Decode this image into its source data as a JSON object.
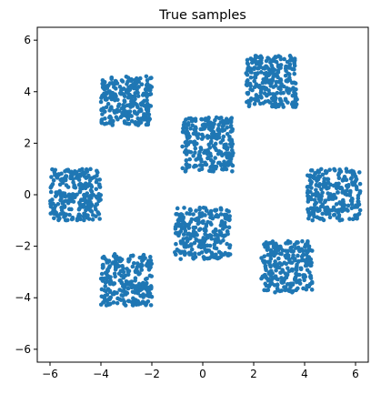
{
  "chart_data": {
    "type": "scatter",
    "title": "True samples",
    "xlabel": "",
    "ylabel": "",
    "xlim": [
      -6.5,
      6.5
    ],
    "ylim": [
      -6.5,
      6.5
    ],
    "xticks": [
      -6,
      -4,
      -2,
      0,
      2,
      4,
      6
    ],
    "yticks": [
      -6,
      -4,
      -2,
      0,
      2,
      4,
      6
    ],
    "xtick_labels": [
      "−6",
      "−4",
      "−2",
      "0",
      "2",
      "4",
      "6"
    ],
    "ytick_labels": [
      "−6",
      "−4",
      "−2",
      "0",
      "2",
      "4",
      "6"
    ],
    "grid": false,
    "legend": "none",
    "series": [
      {
        "color": "#1f77b4",
        "clusters": [
          {
            "x_range": [
              -6.0,
              -4.0
            ],
            "y_range": [
              -1.0,
              1.0
            ],
            "count": 260
          },
          {
            "x_range": [
              -4.0,
              -2.0
            ],
            "y_range": [
              2.7,
              4.6
            ],
            "count": 260
          },
          {
            "x_range": [
              -4.0,
              -2.0
            ],
            "y_range": [
              -4.3,
              -2.3
            ],
            "count": 260
          },
          {
            "x_range": [
              -1.1,
              1.1
            ],
            "y_range": [
              -2.5,
              -0.5
            ],
            "count": 260
          },
          {
            "x_range": [
              -0.8,
              1.2
            ],
            "y_range": [
              0.9,
              3.0
            ],
            "count": 260
          },
          {
            "x_range": [
              1.7,
              3.7
            ],
            "y_range": [
              3.4,
              5.4
            ],
            "count": 260
          },
          {
            "x_range": [
              2.3,
              4.3
            ],
            "y_range": [
              -3.8,
              -1.8
            ],
            "count": 260
          },
          {
            "x_range": [
              4.1,
              6.2
            ],
            "y_range": [
              -1.0,
              1.0
            ],
            "count": 260
          }
        ]
      }
    ]
  }
}
